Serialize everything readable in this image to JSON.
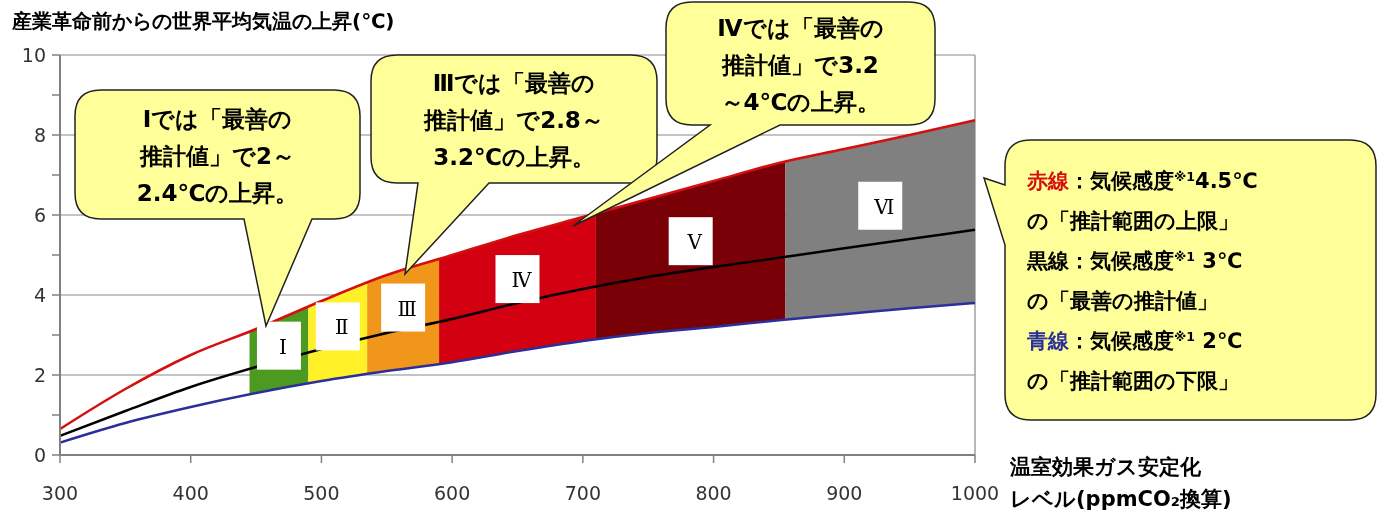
{
  "chart_data": {
    "type": "line",
    "ylabel": "産業革命前からの世界平均気温の上昇(℃)",
    "xlabel": "温室効果ガス安定化レベル(ppmCO₂換算)",
    "x": [
      300,
      350,
      400,
      450,
      500,
      550,
      600,
      650,
      700,
      750,
      800,
      850,
      900,
      950,
      1000
    ],
    "series": [
      {
        "color": "#d40f0f",
        "values": [
          0.65,
          1.65,
          2.5,
          3.15,
          3.85,
          4.5,
          5.0,
          5.5,
          5.95,
          6.4,
          6.85,
          7.3,
          7.65,
          8.0,
          8.37
        ]
      },
      {
        "color": "#000000",
        "values": [
          0.48,
          1.1,
          1.7,
          2.2,
          2.65,
          3.05,
          3.4,
          3.8,
          4.15,
          4.45,
          4.7,
          4.93,
          5.17,
          5.4,
          5.63
        ]
      },
      {
        "color": "#2b2f9a",
        "values": [
          0.31,
          0.8,
          1.2,
          1.55,
          1.85,
          2.1,
          2.32,
          2.6,
          2.85,
          3.05,
          3.2,
          3.37,
          3.52,
          3.67,
          3.8
        ]
      }
    ],
    "bands": [
      {
        "axis": "x",
        "from": 445,
        "to": 490,
        "label": "Ⅰ",
        "color": "#4c9a20"
      },
      {
        "axis": "x",
        "from": 490,
        "to": 535,
        "label": "Ⅱ",
        "color": "#fff028"
      },
      {
        "axis": "x",
        "from": 535,
        "to": 590,
        "label": "Ⅲ",
        "color": "#f0961a"
      },
      {
        "axis": "x",
        "from": 590,
        "to": 710,
        "label": "Ⅳ",
        "color": "#d20010"
      },
      {
        "axis": "x",
        "from": 710,
        "to": 855,
        "label": "Ⅴ",
        "color": "#7a0008"
      },
      {
        "axis": "x",
        "from": 855,
        "to": 1000,
        "label": "Ⅵ",
        "color": "#808080"
      }
    ],
    "annotations": [
      "Ⅰでは「最善の推計値」で2～2.4℃の上昇。",
      "Ⅲでは「最善の推計値」で2.8～3.2℃の上昇。",
      "Ⅳでは「最善の推計値」で3.2～4℃の上昇。",
      "赤線：気候感度$^{※1}$4.5℃の「推計範囲の上限」",
      "黒線：気候感度$^{※1}$ 3℃の「最善の推計値」",
      "青線：気候感度$^{※1}$ 2℃の「推計範囲の下限」"
    ],
    "xlim": [
      300,
      1000
    ],
    "xticks": [
      300,
      400,
      500,
      600,
      700,
      800,
      900,
      1000
    ],
    "ylim": [
      0,
      10
    ],
    "yticks": [
      0,
      {
        "value": 1,
        "label": null
      },
      2,
      {
        "value": 3,
        "label": null
      },
      4,
      {
        "value": 5,
        "label": null
      },
      6,
      {
        "value": 7,
        "label": null
      },
      8,
      {
        "value": 9,
        "label": null
      },
      10
    ],
    "grid": "y",
    "marker": "none",
    "line_style": "solid"
  }
}
